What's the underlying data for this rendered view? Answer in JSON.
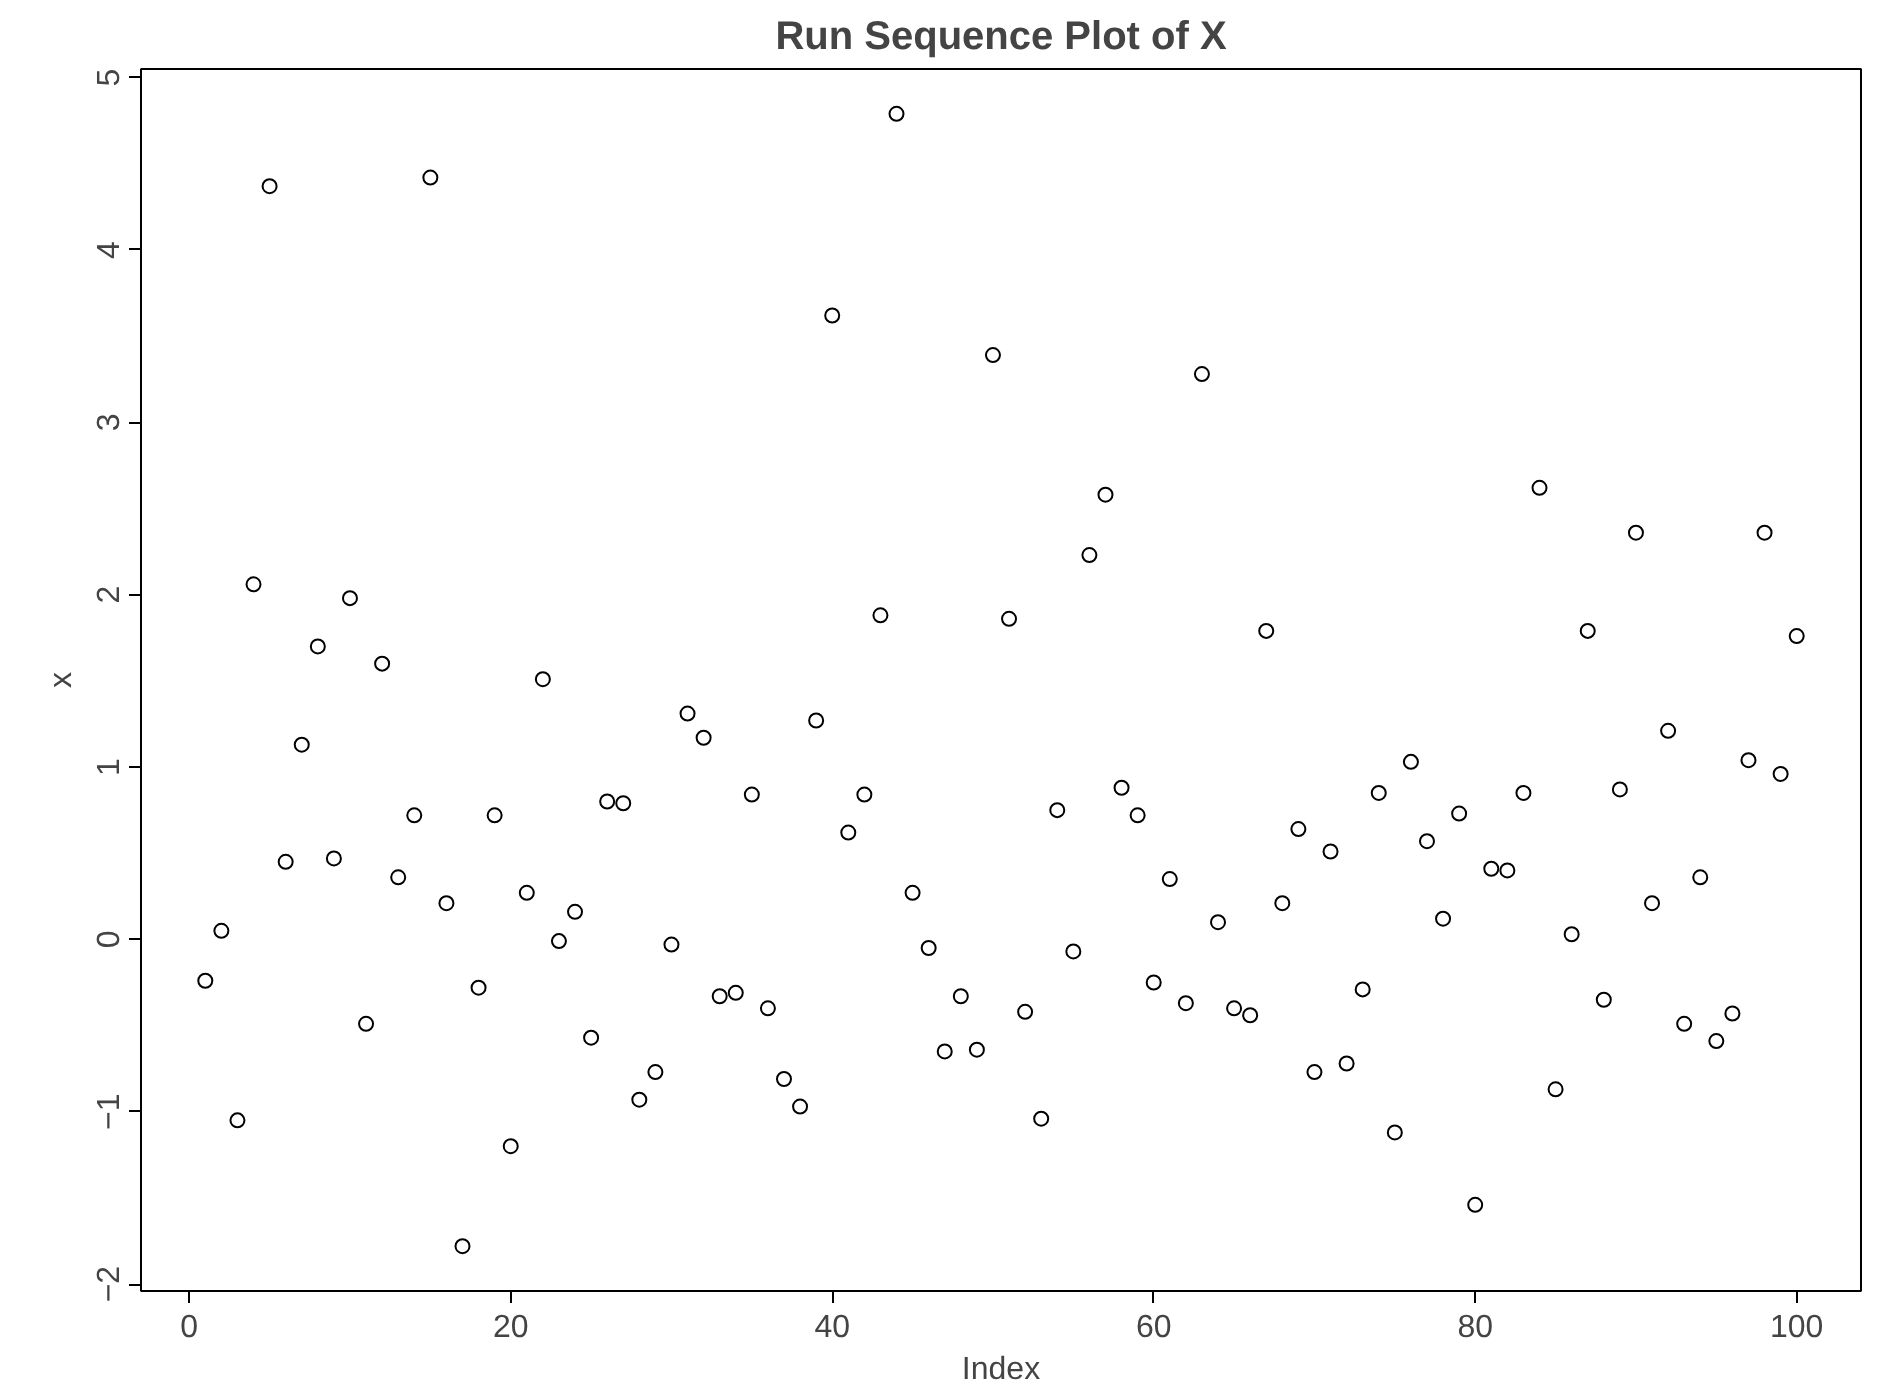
{
  "chart_data": {
    "type": "scatter",
    "title": "Run Sequence Plot of X",
    "xlabel": "Index",
    "ylabel": "x",
    "x": [
      1,
      2,
      3,
      4,
      5,
      6,
      7,
      8,
      9,
      10,
      11,
      12,
      13,
      14,
      15,
      16,
      17,
      18,
      19,
      20,
      21,
      22,
      23,
      24,
      25,
      26,
      27,
      28,
      29,
      30,
      31,
      32,
      33,
      34,
      35,
      36,
      37,
      38,
      39,
      40,
      41,
      42,
      43,
      44,
      45,
      46,
      47,
      48,
      49,
      50,
      51,
      52,
      53,
      54,
      55,
      56,
      57,
      58,
      59,
      60,
      61,
      62,
      63,
      64,
      65,
      66,
      67,
      68,
      69,
      70,
      71,
      72,
      73,
      74,
      75,
      76,
      77,
      78,
      79,
      80,
      81,
      82,
      83,
      84,
      85,
      86,
      87,
      88,
      89,
      90,
      91,
      92,
      93,
      94,
      95,
      96,
      97,
      98,
      99,
      100
    ],
    "series": [
      {
        "color": "#000000",
        "values": [
          -0.24,
          0.05,
          -1.05,
          2.06,
          4.37,
          0.45,
          1.13,
          1.7,
          0.47,
          1.98,
          -0.49,
          1.6,
          0.36,
          0.72,
          4.42,
          0.21,
          -1.78,
          -0.28,
          0.72,
          -1.2,
          0.27,
          1.51,
          -0.01,
          0.16,
          -0.57,
          0.8,
          0.79,
          -0.93,
          -0.77,
          -0.03,
          1.31,
          1.17,
          -0.33,
          -0.31,
          0.84,
          -0.4,
          -0.81,
          -0.97,
          1.27,
          3.62,
          0.62,
          0.84,
          1.88,
          4.79,
          0.27,
          -0.05,
          -0.65,
          -0.33,
          -0.64,
          3.39,
          1.86,
          -0.42,
          -1.04,
          0.75,
          -0.07,
          2.23,
          2.58,
          0.88,
          0.72,
          -0.25,
          0.35,
          -0.37,
          3.28,
          0.1,
          -0.4,
          -0.44,
          1.79,
          0.21,
          0.64,
          -0.77,
          0.51,
          -0.72,
          -0.29,
          0.85,
          -1.12,
          1.03,
          0.57,
          0.12,
          0.73,
          -1.54,
          0.41,
          0.4,
          0.85,
          2.62,
          -0.87,
          0.03,
          1.79,
          -0.35,
          0.87,
          2.36,
          0.21,
          1.21,
          -0.49,
          0.36,
          -0.59,
          -0.43,
          1.04,
          2.36,
          0.96,
          1.76
        ]
      }
    ],
    "xlim": [
      -3,
      104
    ],
    "ylim": [
      -2.04,
      5.05
    ],
    "xticks": [
      0,
      20,
      40,
      60,
      80,
      100
    ],
    "yticks": [
      -2,
      -1,
      0,
      1,
      2,
      3,
      4,
      5
    ],
    "marker": "circle"
  }
}
